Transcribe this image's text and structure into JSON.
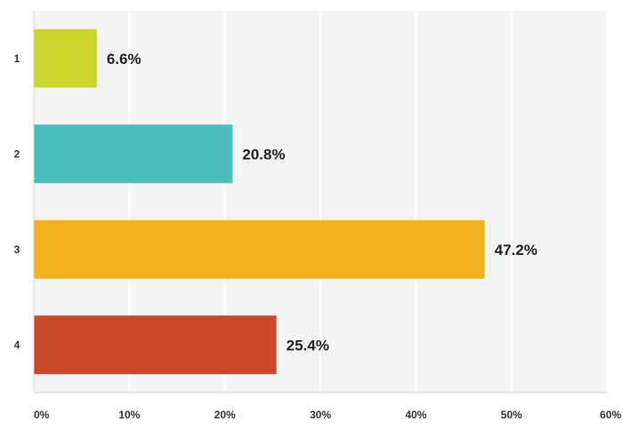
{
  "chart_data": {
    "type": "bar",
    "orientation": "horizontal",
    "categories": [
      "1",
      "2",
      "3",
      "4"
    ],
    "values": [
      6.6,
      20.8,
      47.2,
      25.4
    ],
    "data_labels": [
      "6.6%",
      "20.8%",
      "47.2%",
      "25.4%"
    ],
    "colors": [
      "#c9d62e",
      "#4bbfbd",
      "#f2b01c",
      "#c84a2a"
    ],
    "x_ticks": [
      "0%",
      "10%",
      "20%",
      "30%",
      "40%",
      "50%",
      "60%"
    ],
    "xlim": [
      0,
      60
    ],
    "grid": true,
    "legend": false,
    "title": "",
    "xlabel": "",
    "ylabel": ""
  }
}
